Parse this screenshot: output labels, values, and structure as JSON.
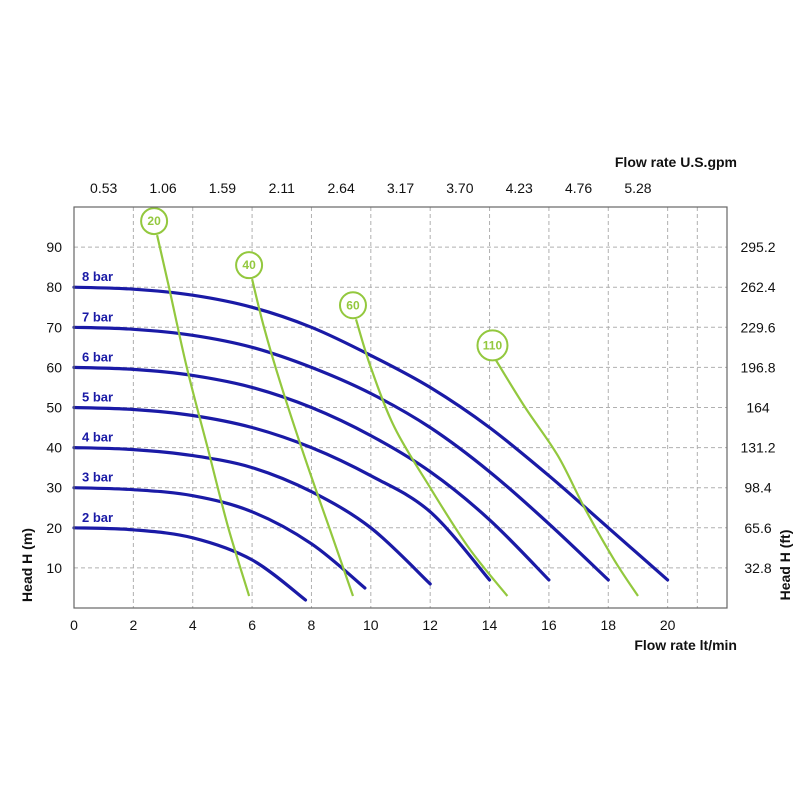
{
  "chart_data": {
    "type": "line",
    "title": "",
    "colors": {
      "pressure": "#1a1aa6",
      "consumption": "#93c83e",
      "grid": "#b0b0b0",
      "frame": "#666666"
    },
    "x_axis_bottom": {
      "label": "Flow rate  lt/min",
      "ticks": [
        "0",
        "2",
        "4",
        "6",
        "8",
        "10",
        "12",
        "14",
        "16",
        "18",
        "20"
      ],
      "range": [
        0,
        22
      ]
    },
    "x_axis_top": {
      "label": "Flow rate U.S.gpm",
      "ticks": [
        "0.53",
        "1.06",
        "1.59",
        "2.11",
        "2.64",
        "3.17",
        "3.70",
        "4.23",
        "4.76",
        "5.28"
      ]
    },
    "y_axis_left": {
      "label": "Head H (m)",
      "ticks": [
        "10",
        "20",
        "30",
        "40",
        "50",
        "60",
        "70",
        "80",
        "90"
      ],
      "range": [
        0,
        100
      ]
    },
    "y_axis_right": {
      "label": "Head H (ft)",
      "ticks": [
        "32.8",
        "65.6",
        "98.4",
        "131.2",
        "164",
        "196.8",
        "229.6",
        "262.4",
        "295.2"
      ]
    },
    "grid": true,
    "series": [
      {
        "name": "8 bar",
        "points": [
          [
            0,
            80
          ],
          [
            2,
            79.5
          ],
          [
            4,
            78
          ],
          [
            6,
            75
          ],
          [
            8,
            70
          ],
          [
            10,
            63
          ],
          [
            12,
            55
          ],
          [
            14,
            45
          ],
          [
            16,
            33
          ],
          [
            18,
            20
          ],
          [
            20,
            7
          ]
        ]
      },
      {
        "name": "7 bar",
        "points": [
          [
            0,
            70
          ],
          [
            2,
            69.5
          ],
          [
            4,
            68
          ],
          [
            6,
            65
          ],
          [
            8,
            60
          ],
          [
            10,
            53.5
          ],
          [
            12,
            45
          ],
          [
            14,
            34
          ],
          [
            16,
            21
          ],
          [
            18,
            7
          ]
        ]
      },
      {
        "name": "6 bar",
        "points": [
          [
            0,
            60
          ],
          [
            2,
            59.5
          ],
          [
            4,
            58
          ],
          [
            6,
            55
          ],
          [
            8,
            50
          ],
          [
            10,
            43
          ],
          [
            12,
            34
          ],
          [
            14,
            22
          ],
          [
            16,
            7
          ]
        ]
      },
      {
        "name": "5 bar",
        "points": [
          [
            0,
            50
          ],
          [
            2,
            49.5
          ],
          [
            4,
            48
          ],
          [
            6,
            45
          ],
          [
            8,
            40
          ],
          [
            10,
            33
          ],
          [
            12,
            24
          ],
          [
            14,
            7
          ]
        ]
      },
      {
        "name": "4 bar",
        "points": [
          [
            0,
            40
          ],
          [
            2,
            39.5
          ],
          [
            4,
            38
          ],
          [
            6,
            35
          ],
          [
            8,
            29
          ],
          [
            10,
            20
          ],
          [
            12,
            6
          ]
        ]
      },
      {
        "name": "3 bar",
        "points": [
          [
            0,
            30
          ],
          [
            2,
            29.5
          ],
          [
            4,
            28
          ],
          [
            6,
            24
          ],
          [
            8,
            16
          ],
          [
            9.8,
            5
          ]
        ]
      },
      {
        "name": "2 bar",
        "points": [
          [
            0,
            20
          ],
          [
            2,
            19.5
          ],
          [
            4,
            17.5
          ],
          [
            6,
            12
          ],
          [
            7.8,
            2
          ]
        ]
      }
    ],
    "air_consumption": [
      {
        "label": "20",
        "points": [
          [
            2.8,
            93
          ],
          [
            3.2,
            80
          ],
          [
            3.8,
            60
          ],
          [
            4.5,
            40
          ],
          [
            5.2,
            20
          ],
          [
            5.9,
            3
          ]
        ]
      },
      {
        "label": "40",
        "points": [
          [
            6.0,
            82
          ],
          [
            6.4,
            70
          ],
          [
            7.0,
            55
          ],
          [
            7.8,
            37
          ],
          [
            8.6,
            20
          ],
          [
            9.4,
            3
          ]
        ]
      },
      {
        "label": "60",
        "points": [
          [
            9.5,
            72
          ],
          [
            10.0,
            60
          ],
          [
            10.8,
            45
          ],
          [
            12.0,
            30
          ],
          [
            13.3,
            15
          ],
          [
            14.6,
            3
          ]
        ]
      },
      {
        "label": "110",
        "points": [
          [
            14.2,
            62
          ],
          [
            15.2,
            50
          ],
          [
            16.3,
            38
          ],
          [
            17.2,
            25
          ],
          [
            18.2,
            12
          ],
          [
            19.0,
            3
          ]
        ]
      }
    ]
  }
}
